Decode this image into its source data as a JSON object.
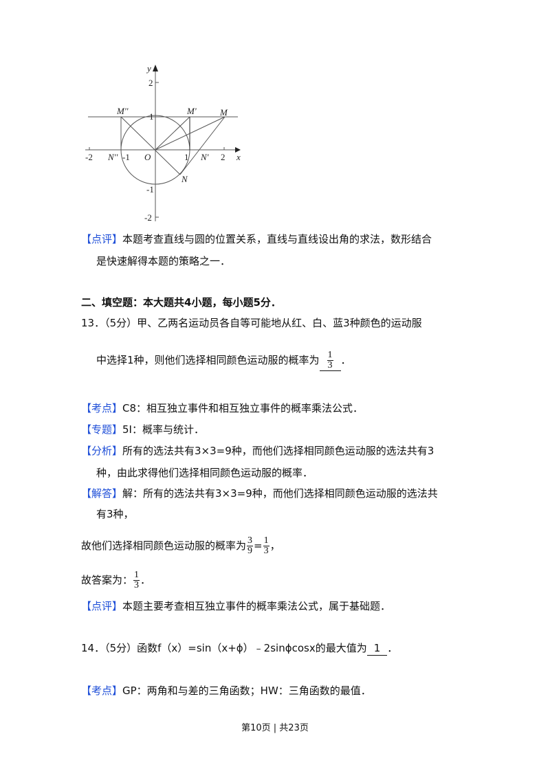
{
  "figure": {
    "axis_x": "x",
    "axis_y": "y",
    "origin": "O",
    "ticks_x": [
      "-2",
      "-1",
      "1",
      "2"
    ],
    "ticks_y": [
      "2",
      "1",
      "-1",
      "-2"
    ],
    "points": {
      "M": "M",
      "M1": "M'",
      "M2": "M''",
      "N": "N",
      "N1": "N'",
      "N2": "N''"
    }
  },
  "review1": {
    "tag": "【点评】",
    "line1": "本题考查直线与圆的位置关系，直线与直线设出角的求法，数形结合",
    "line2": "是快速解得本题的策略之一．"
  },
  "section": {
    "title": "二、填空题：本大题共4小题，每小题5分．"
  },
  "q13": {
    "line1": "13．（5分）甲、乙两名运动员各自等可能地从红、白、蓝3种颜色的运动服",
    "line2": "中选择1种，则他们选择相同颜色运动服的概率为",
    "answer_num": "1",
    "answer_den": "3",
    "end": "．",
    "kaodian_tag": "【考点】",
    "kaodian": "C8：相互独立事件和相互独立事件的概率乘法公式．",
    "zhuanti_tag": "【专题】",
    "zhuanti": "5I：概率与统计．",
    "fenxi_tag": "【分析】",
    "fenxi1": "所有的选法共有3×3=9种，而他们选择相同颜色运动服的选法共有3",
    "fenxi2": "种，由此求得他们选择相同颜色运动服的概率．",
    "jieda_tag": "【解答】",
    "jieda1": "解：所有的选法共有3×3=9种，而他们选择相同颜色运动服的选法共",
    "jieda2": "有3种，",
    "prob_text": "故他们选择相同颜色运动服的概率为",
    "f1_num": "3",
    "f1_den": "9",
    "eq": "=",
    "f2_num": "1",
    "f2_den": "3",
    "comma": "，",
    "ans_text": "故答案为：",
    "ans_num": "1",
    "ans_den": "3",
    "ans_end": "．",
    "review_tag": "【点评】",
    "review": "本题主要考查相互独立事件的概率乘法公式，属于基础题．"
  },
  "q14": {
    "line1": "14．（5分）函数f（x）=sin（x+ϕ）﹣2sinϕcosx的最大值为",
    "answer": "1",
    "end": "．",
    "kaodian_tag": "【考点】",
    "kaodian": "GP：两角和与差的三角函数；HW：三角函数的最值．"
  },
  "footer": {
    "page": "第10页 | 共23页"
  },
  "colors": {
    "tag": "#1f4fd8",
    "text": "#111111"
  }
}
